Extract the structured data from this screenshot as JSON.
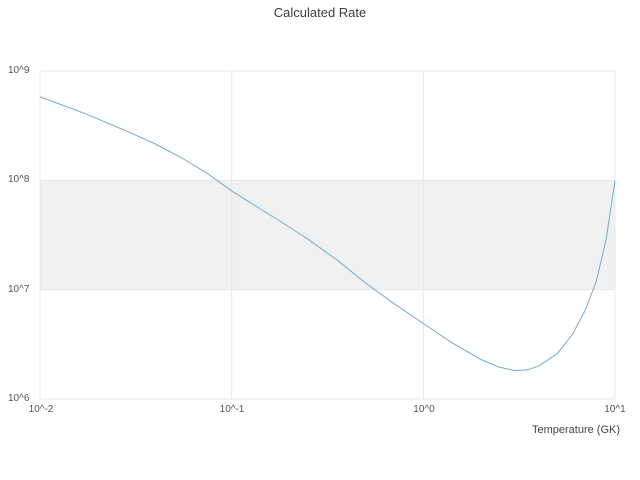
{
  "title": "Calculated Rate",
  "x_axis": {
    "label": "Temperature (GK)",
    "ticks": [
      "10^-2",
      "10^-1",
      "10^0",
      "10^1"
    ]
  },
  "y_axis": {
    "ticks": [
      "10^9",
      "10^8",
      "10^7",
      "10^6"
    ]
  },
  "colors": {
    "line": "#6baed6",
    "band": "#f1f1f1",
    "grid": "#e8e8e8"
  },
  "chart_data": {
    "type": "line",
    "title": "Calculated Rate",
    "xlabel": "Temperature (GK)",
    "ylabel": "",
    "xscale": "log",
    "yscale": "log",
    "xlim": [
      0.01,
      10
    ],
    "ylim": [
      1000000,
      1000000000
    ],
    "grid": true,
    "band": {
      "ymin": 10000000,
      "ymax": 100000000
    },
    "x": [
      0.01,
      0.013,
      0.017,
      0.022,
      0.03,
      0.04,
      0.055,
      0.075,
      0.1,
      0.13,
      0.18,
      0.25,
      0.35,
      0.5,
      0.7,
      1.0,
      1.4,
      2.0,
      2.5,
      3.0,
      3.5,
      4.0,
      5.0,
      6.0,
      7.0,
      8.0,
      9.0,
      10.0
    ],
    "y": [
      580000000,
      490000000,
      410000000,
      340000000,
      270000000,
      215000000,
      160000000,
      115000000,
      80000000,
      60000000,
      42000000,
      29000000,
      19000000,
      11500000,
      7500000,
      4900000,
      3300000,
      2300000,
      1950000,
      1820000,
      1850000,
      2000000,
      2600000,
      3900000,
      6500000,
      12000000,
      29000000,
      100000000
    ]
  }
}
